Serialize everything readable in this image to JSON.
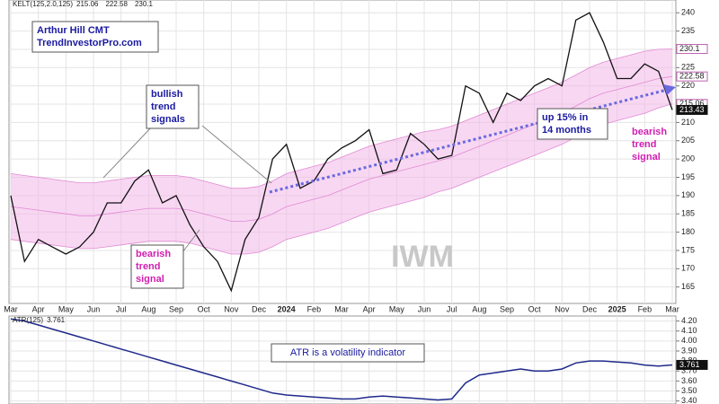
{
  "chart_data": [
    {
      "type": "line",
      "indicator_label": "KELT(125,2.0,125)",
      "watermark": "IWM",
      "categories": [
        "Mar",
        null,
        "Apr",
        null,
        "May",
        null,
        "Jun",
        null,
        "Jul",
        null,
        "Aug",
        null,
        "Sep",
        null,
        "Oct",
        null,
        "Nov",
        null,
        "Dec",
        null,
        "2024",
        null,
        "Feb",
        null,
        "Mar",
        null,
        "Apr",
        null,
        "May",
        null,
        "Jun",
        null,
        "Jul",
        null,
        "Aug",
        null,
        "Sep",
        null,
        "Oct",
        null,
        "Nov",
        null,
        "Dec",
        null,
        "2025",
        null,
        "Feb",
        null,
        "Mar"
      ],
      "series": [
        {
          "color": "#111111",
          "values": [
            190,
            172,
            178,
            176,
            174,
            176,
            180,
            188,
            188,
            194,
            197,
            188,
            190,
            182,
            176,
            172,
            164,
            178,
            184,
            200,
            204,
            192,
            194,
            200,
            203,
            205,
            208,
            196,
            197,
            207,
            204,
            200,
            201,
            220,
            218,
            210,
            218,
            216,
            220,
            222,
            220,
            238,
            240,
            232,
            222,
            222,
            226,
            224,
            213.43
          ]
        }
      ],
      "channel": {
        "color": "#f2b6e8",
        "upper": [
          196,
          195.5,
          195,
          194.5,
          194,
          193.5,
          193.5,
          194,
          194.5,
          195,
          195.5,
          195.5,
          195.5,
          195,
          194,
          193,
          192,
          192,
          192.5,
          194,
          196,
          197,
          198,
          199,
          200.5,
          202,
          203.5,
          204.5,
          205.5,
          206.5,
          207.5,
          208,
          209,
          210.5,
          212,
          213.5,
          215,
          216.5,
          218,
          219.5,
          221,
          223,
          225,
          226.5,
          227.5,
          228.5,
          229.5,
          230,
          230.1
        ],
        "middle": [
          187,
          186.5,
          186,
          185.5,
          185,
          184.5,
          184.5,
          185,
          185.5,
          186,
          186.5,
          186.5,
          186.5,
          186,
          185,
          184,
          183,
          183,
          183.5,
          185,
          187,
          188,
          189,
          190,
          191.5,
          193,
          194.5,
          195.5,
          196.5,
          197.5,
          198.5,
          199.5,
          200.5,
          202,
          203.5,
          205,
          206.5,
          208,
          209.5,
          211,
          212.5,
          214.5,
          216.5,
          218,
          219,
          220,
          221,
          222,
          222.58
        ],
        "lower": [
          178,
          177.5,
          177,
          176.5,
          176,
          175.5,
          175.5,
          176,
          176.5,
          177,
          177.5,
          177.5,
          177.5,
          177,
          176,
          175,
          174,
          174,
          174.5,
          176,
          178,
          179,
          180,
          181,
          182.5,
          184,
          185.5,
          186.5,
          187.5,
          188.5,
          189.5,
          191,
          192,
          193.5,
          195,
          196.5,
          198,
          199.5,
          201,
          202.5,
          204,
          206,
          208,
          209.5,
          210.5,
          211.5,
          212.5,
          214,
          215.06
        ]
      },
      "ylim": [
        160.5,
        243
      ],
      "yticks": [
        165,
        170,
        175,
        180,
        185,
        190,
        195,
        200,
        205,
        210,
        215,
        220,
        225,
        230,
        235,
        240
      ],
      "grid": true,
      "annotations": [
        {
          "lines": [
            "Arthur Hill CMT",
            "TrendInvestorPro.com"
          ]
        },
        {
          "lines": [
            "bullish",
            "trend",
            "signals"
          ]
        },
        {
          "lines": [
            "bearish",
            "trend",
            "signal"
          ]
        },
        {
          "lines": [
            "up 15% in",
            "14 months"
          ]
        },
        {
          "lines": [
            "bearish",
            "trend",
            "signal"
          ]
        }
      ]
    },
    {
      "type": "line",
      "indicator_label": "ATR(125)",
      "annotation": "ATR is a volatility indicator",
      "series": [
        {
          "color": "#1f2a8a",
          "values": [
            4.22,
            4.2,
            4.16,
            4.12,
            4.08,
            4.04,
            4.0,
            3.96,
            3.92,
            3.88,
            3.84,
            3.8,
            3.76,
            3.72,
            3.68,
            3.64,
            3.6,
            3.56,
            3.52,
            3.48,
            3.46,
            3.45,
            3.44,
            3.43,
            3.42,
            3.42,
            3.44,
            3.45,
            3.44,
            3.43,
            3.42,
            3.41,
            3.42,
            3.58,
            3.66,
            3.68,
            3.7,
            3.72,
            3.7,
            3.7,
            3.72,
            3.78,
            3.8,
            3.8,
            3.79,
            3.78,
            3.76,
            3.75,
            3.761
          ]
        }
      ],
      "ylim": [
        3.37,
        4.25
      ],
      "yticks": [
        {
          "value": 3.4,
          "label": "3.40"
        },
        {
          "value": 3.5,
          "label": "3.50"
        },
        {
          "value": 3.6,
          "label": "3.60"
        },
        {
          "value": 3.7,
          "label": "3.70"
        },
        {
          "value": 3.8,
          "label": "3.80"
        },
        {
          "value": 3.9,
          "label": "3.90"
        },
        {
          "value": 4.0,
          "label": "4.00"
        },
        {
          "value": 4.1,
          "label": "4.10"
        },
        {
          "value": 4.2,
          "label": "4.20"
        }
      ],
      "grid": true
    }
  ]
}
